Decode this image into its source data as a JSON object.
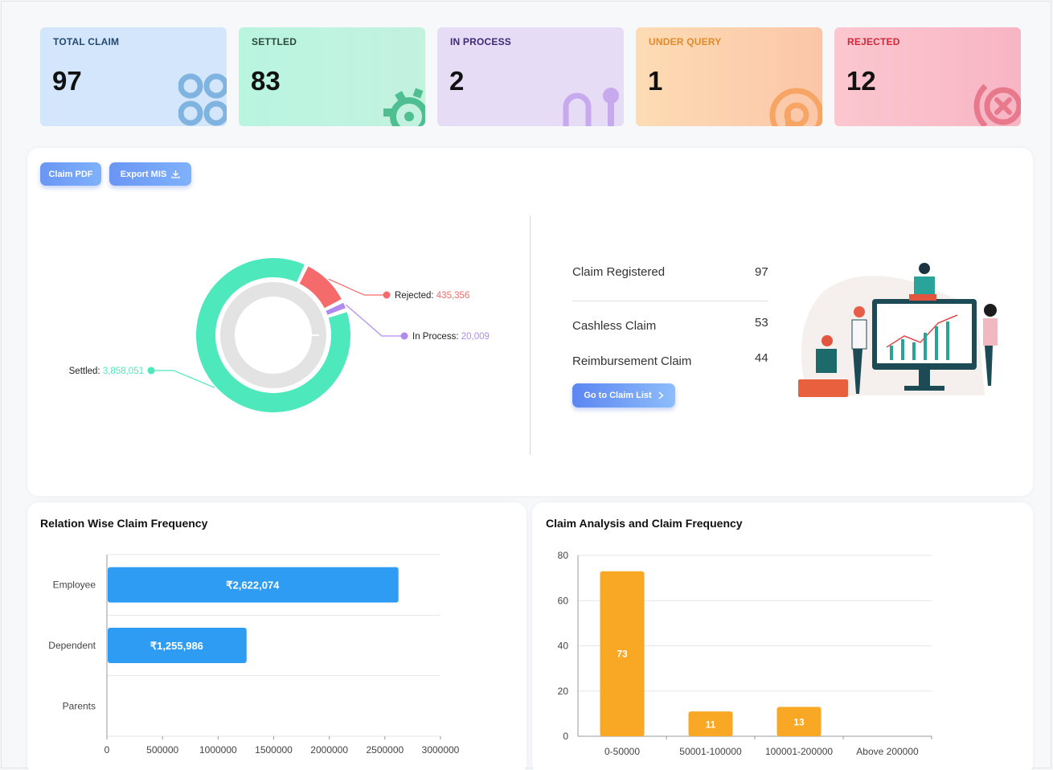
{
  "cards": [
    {
      "label": "TOTAL CLAIM",
      "value": "97",
      "icon": "grid-icon"
    },
    {
      "label": "SETTLED",
      "value": "83",
      "icon": "gear-icon"
    },
    {
      "label": "IN PROCESS",
      "value": "2",
      "icon": "process-icon"
    },
    {
      "label": "UNDER QUERY",
      "value": "1",
      "icon": "query-icon"
    },
    {
      "label": "REJECTED",
      "value": "12",
      "icon": "close-circle-icon"
    }
  ],
  "buttons": {
    "claim_pdf": "Claim PDF",
    "export_mis": "Export MIS",
    "go_to_claim_list": "Go to Claim List"
  },
  "donut": {
    "segments": [
      {
        "label": "Settled",
        "value": "3,858,051",
        "color": "#4ee8bd"
      },
      {
        "label": "Rejected",
        "value": "435,356",
        "color": "#f56a6a"
      },
      {
        "label": "In Process",
        "value": "20,009",
        "color": "#b18af0"
      }
    ]
  },
  "summary": {
    "registered_label": "Claim Registered",
    "registered_value": "97",
    "cashless_label": "Cashless Claim",
    "cashless_value": "53",
    "reimbursement_label": "Reimbursement Claim",
    "reimbursement_value": "44"
  },
  "chart_data": [
    {
      "type": "bar",
      "orientation": "horizontal",
      "title": "Relation Wise Claim Frequency",
      "categories": [
        "Employee",
        "Dependent",
        "Parents"
      ],
      "values": [
        2622074,
        1255986,
        0
      ],
      "data_labels": [
        "₹2,622,074",
        "₹1,255,986",
        ""
      ],
      "x_ticks": [
        "0",
        "500000",
        "1000000",
        "1500000",
        "2000000",
        "2500000",
        "3000000"
      ],
      "xlim": [
        0,
        3000000
      ],
      "color": "#2f9cf4",
      "grid": true
    },
    {
      "type": "bar",
      "title": "Claim Analysis and Claim Frequency",
      "categories": [
        "0-50000",
        "50001-100000",
        "100001-200000",
        "Above 200000"
      ],
      "values": [
        73,
        11,
        13,
        0
      ],
      "data_labels": [
        "73",
        "11",
        "13",
        ""
      ],
      "y_ticks": [
        "0",
        "20",
        "40",
        "60",
        "80"
      ],
      "ylim": [
        0,
        80
      ],
      "color": "#f9a825",
      "grid": true
    }
  ]
}
